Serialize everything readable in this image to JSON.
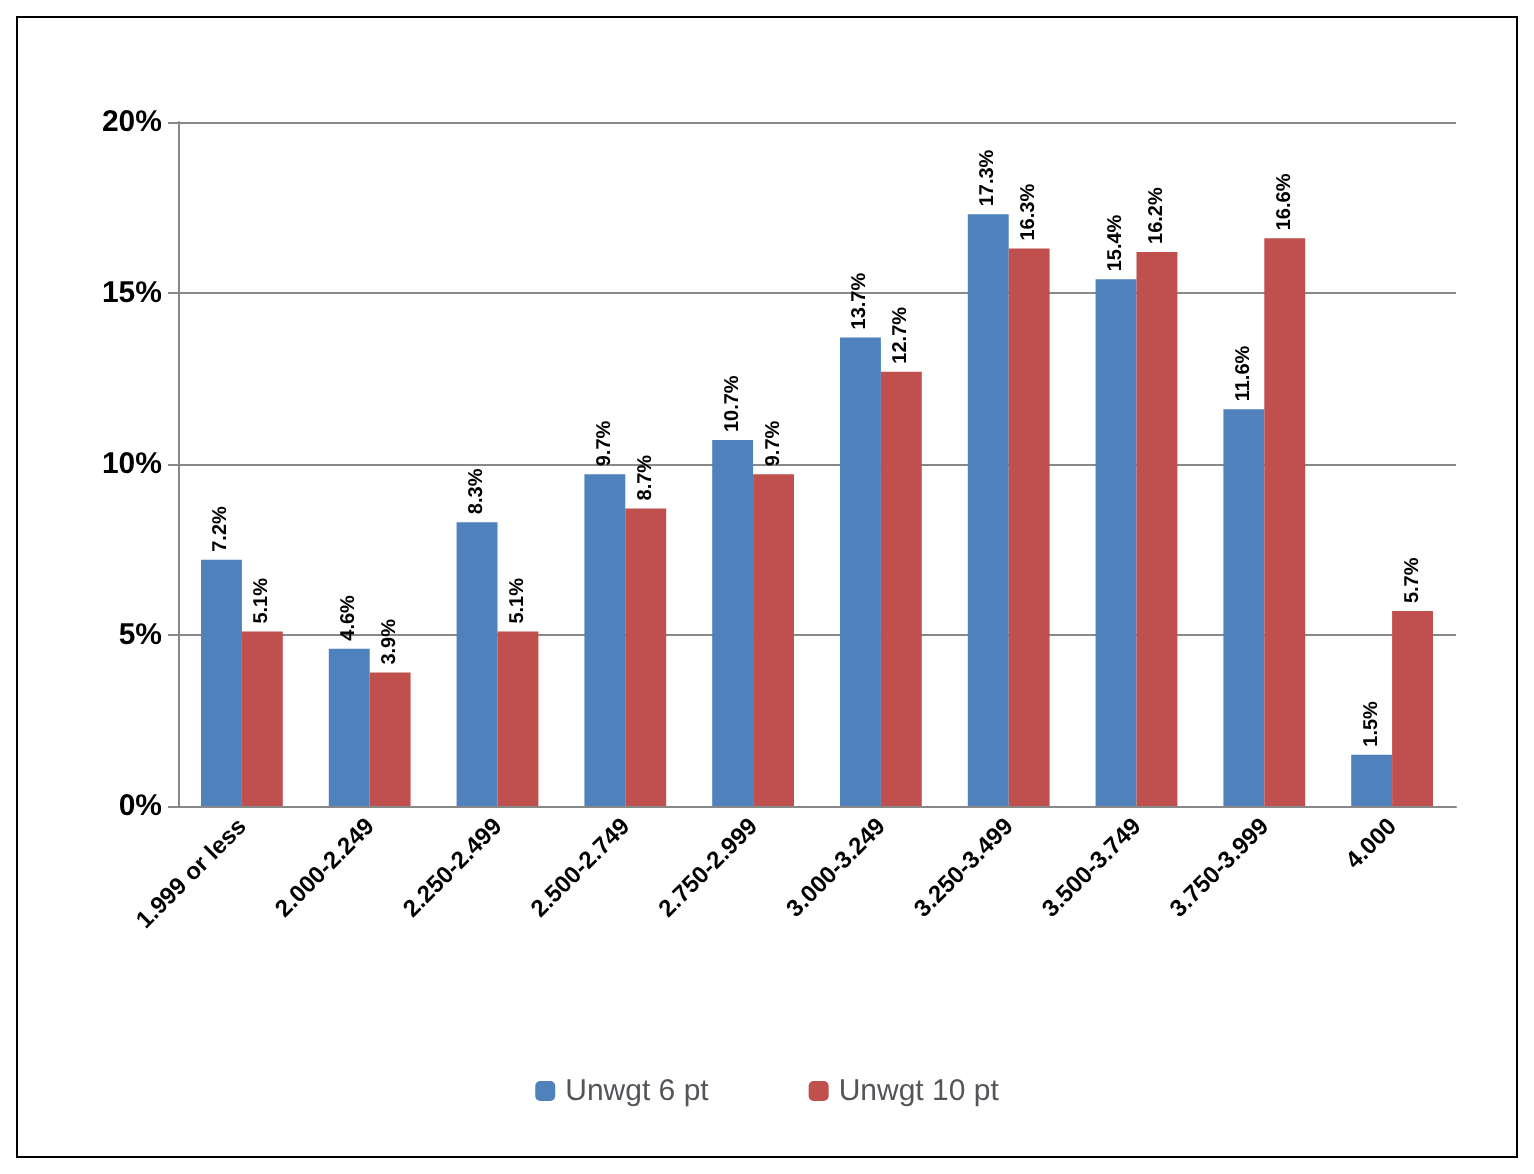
{
  "chart_data": {
    "type": "bar",
    "categories": [
      "1.999 or less",
      "2.000-2.249",
      "2.250-2.499",
      "2.500-2.749",
      "2.750-2.999",
      "3.000-3.249",
      "3.250-3.499",
      "3.500-3.749",
      "3.750-3.999",
      "4.000"
    ],
    "series": [
      {
        "name": "Unwgt 6 pt",
        "color": "#4f81bd",
        "values": [
          7.2,
          4.6,
          8.3,
          9.7,
          10.7,
          13.7,
          17.3,
          15.4,
          11.6,
          1.5
        ],
        "value_labels": [
          "7.2%",
          "4.6%",
          "8.3%",
          "9.7%",
          "10.7%",
          "13.7%",
          "17.3%",
          "15.4%",
          "11.6%",
          "1.5%"
        ]
      },
      {
        "name": "Unwgt 10 pt",
        "color": "#c0504d",
        "values": [
          5.1,
          3.9,
          5.1,
          8.7,
          9.7,
          12.7,
          16.3,
          16.2,
          16.6,
          5.7
        ],
        "value_labels": [
          "5.1%",
          "3.9%",
          "5.1%",
          "8.7%",
          "9.7%",
          "12.7%",
          "16.3%",
          "16.2%",
          "16.6%",
          "5.7%"
        ]
      }
    ],
    "ylim": [
      0,
      20
    ],
    "yticks": [
      {
        "value": 0,
        "label": "0%"
      },
      {
        "value": 5,
        "label": "5%"
      },
      {
        "value": 10,
        "label": "10%"
      },
      {
        "value": 15,
        "label": "15%"
      },
      {
        "value": 20,
        "label": "20%"
      }
    ],
    "grid": "y",
    "legend": "bottom"
  }
}
